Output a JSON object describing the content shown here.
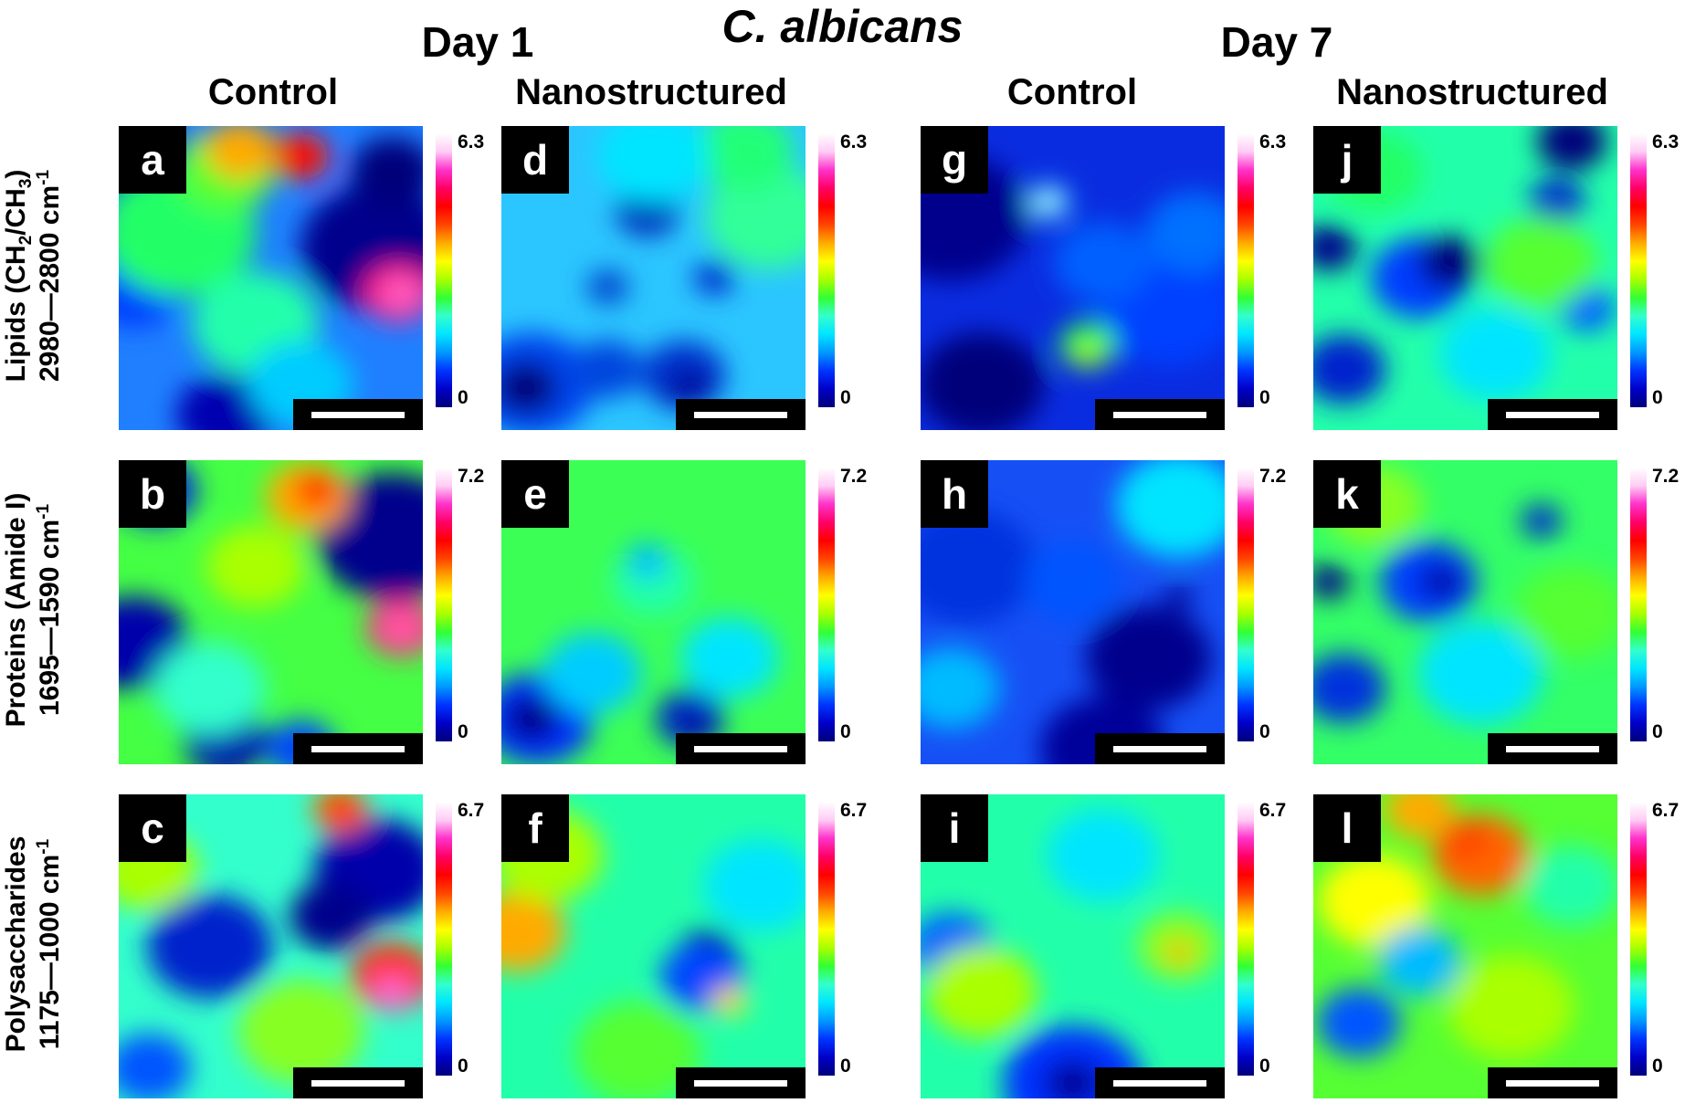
{
  "figure": {
    "title": "C. albicans",
    "days": [
      {
        "label": "Day 1",
        "columns": [
          "Control",
          "Nanostructured"
        ]
      },
      {
        "label": "Day 7",
        "columns": [
          "Control",
          "Nanostructured"
        ]
      }
    ],
    "rows": [
      {
        "line1_pre": "Lipids (CH",
        "line1_sub1": "2",
        "line1_mid": "/CH",
        "line1_sub2": "3",
        "line1_post": ")",
        "line2": "2980—2800 cm",
        "line2_sup": "-1",
        "colorbar_max": "6.3",
        "colorbar_min": "0"
      },
      {
        "line1_pre": "Proteins (Amide I)",
        "line1_sub1": "",
        "line1_mid": "",
        "line1_sub2": "",
        "line1_post": "",
        "line2": "1695—1590 cm",
        "line2_sup": "-1",
        "colorbar_max": "7.2",
        "colorbar_min": "0"
      },
      {
        "line1_pre": "Polysaccharides",
        "line1_sub1": "",
        "line1_mid": "",
        "line1_sub2": "",
        "line1_post": "",
        "line2": "1175—1000 cm",
        "line2_sup": "-1",
        "colorbar_max": "6.7",
        "colorbar_min": "0"
      }
    ],
    "panel_letters": [
      [
        "a",
        "d",
        "g",
        "j"
      ],
      [
        "b",
        "e",
        "h",
        "k"
      ],
      [
        "c",
        "f",
        "i",
        "l"
      ]
    ],
    "colormap": [
      "#00007a",
      "#0000c8",
      "#0033ff",
      "#0099ff",
      "#00e5ff",
      "#33ffcc",
      "#33ff33",
      "#aaff00",
      "#ffff00",
      "#ffaa00",
      "#ff4400",
      "#ff0000",
      "#ff0066",
      "#ff33cc",
      "#ffccf5",
      "#ffffff"
    ],
    "panels": [
      [
        {
          "base": "#1f7fff",
          "blobs": [
            [
              "#0000aa",
              0.08,
              0.12,
              0.16
            ],
            [
              "#003cff",
              0.05,
              0.55,
              0.12
            ],
            [
              "#00008c",
              0.85,
              0.4,
              0.22
            ],
            [
              "#00007a",
              0.9,
              0.15,
              0.12
            ],
            [
              "#0000b0",
              0.35,
              0.95,
              0.14
            ],
            [
              "#22ff66",
              0.2,
              0.35,
              0.22
            ],
            [
              "#55ff33",
              0.35,
              0.15,
              0.14
            ],
            [
              "#22ffaa",
              0.45,
              0.65,
              0.18
            ],
            [
              "#00ccff",
              0.6,
              0.85,
              0.15
            ],
            [
              "#ffaa00",
              0.4,
              0.08,
              0.1
            ],
            [
              "#ff1100",
              0.6,
              0.1,
              0.08
            ],
            [
              "#ff1e8c",
              0.92,
              0.55,
              0.1
            ],
            [
              "#ff66cc",
              0.93,
              0.55,
              0.05
            ]
          ]
        },
        {
          "base": "#2bc6ff",
          "blobs": [
            [
              "#0044ee",
              0.1,
              0.85,
              0.18
            ],
            [
              "#00007a",
              0.08,
              0.86,
              0.09
            ],
            [
              "#0033cc",
              0.6,
              0.82,
              0.12
            ],
            [
              "#00009a",
              0.62,
              0.86,
              0.06
            ],
            [
              "#0044dd",
              0.35,
              0.8,
              0.1
            ],
            [
              "#0033bb",
              0.48,
              0.28,
              0.09
            ],
            [
              "#0044cc",
              0.35,
              0.53,
              0.06
            ],
            [
              "#0033cc",
              0.7,
              0.5,
              0.06
            ],
            [
              "#33ff99",
              0.88,
              0.3,
              0.18
            ],
            [
              "#22ff77",
              0.8,
              0.08,
              0.14
            ],
            [
              "#00e5ff",
              0.5,
              0.1,
              0.16
            ]
          ]
        },
        {
          "base": "#0a2ce0",
          "blobs": [
            [
              "#00008c",
              0.1,
              0.3,
              0.22
            ],
            [
              "#00007a",
              0.2,
              0.85,
              0.18
            ],
            [
              "#0040ff",
              0.82,
              0.6,
              0.2
            ],
            [
              "#0070ff",
              0.9,
              0.35,
              0.14
            ],
            [
              "#00e5ff",
              0.42,
              0.25,
              0.06
            ],
            [
              "#ffffff",
              0.42,
              0.25,
              0.025
            ],
            [
              "#22ff55",
              0.55,
              0.72,
              0.08
            ],
            [
              "#aaff00",
              0.55,
              0.75,
              0.04
            ],
            [
              "#0060ff",
              0.6,
              0.45,
              0.14
            ]
          ]
        },
        {
          "base": "#22ffaa",
          "blobs": [
            [
              "#003cff",
              0.35,
              0.5,
              0.14
            ],
            [
              "#00007a",
              0.45,
              0.45,
              0.09
            ],
            [
              "#0022cc",
              0.1,
              0.8,
              0.12
            ],
            [
              "#00008c",
              0.05,
              0.4,
              0.08
            ],
            [
              "#0022cc",
              0.8,
              0.25,
              0.08
            ],
            [
              "#00007a",
              0.85,
              0.05,
              0.1
            ],
            [
              "#0060ff",
              0.9,
              0.6,
              0.08
            ],
            [
              "#00e5ff",
              0.6,
              0.75,
              0.16
            ],
            [
              "#55ff33",
              0.75,
              0.45,
              0.16
            ],
            [
              "#22ff66",
              0.2,
              0.15,
              0.14
            ]
          ]
        }
      ],
      [
        {
          "base": "#44ff44",
          "blobs": [
            [
              "#00008c",
              0.9,
              0.25,
              0.22
            ],
            [
              "#0000aa",
              0.05,
              0.6,
              0.16
            ],
            [
              "#0022dd",
              0.12,
              0.1,
              0.12
            ],
            [
              "#0000b0",
              0.35,
              0.92,
              0.12
            ],
            [
              "#0044ff",
              0.6,
              0.95,
              0.1
            ],
            [
              "#aaff00",
              0.45,
              0.35,
              0.14
            ],
            [
              "#ffaa00",
              0.62,
              0.12,
              0.12
            ],
            [
              "#ff1100",
              0.65,
              0.1,
              0.06
            ],
            [
              "#ff1e8c",
              0.93,
              0.55,
              0.1
            ],
            [
              "#ff66aa",
              0.93,
              0.55,
              0.05
            ],
            [
              "#33ffcc",
              0.3,
              0.75,
              0.16
            ]
          ]
        },
        {
          "base": "#3cff55",
          "blobs": [
            [
              "#0033ff",
              0.12,
              0.85,
              0.16
            ],
            [
              "#00008c",
              0.1,
              0.85,
              0.08
            ],
            [
              "#0033cc",
              0.62,
              0.85,
              0.1
            ],
            [
              "#00009a",
              0.63,
              0.87,
              0.05
            ],
            [
              "#00ccff",
              0.3,
              0.7,
              0.14
            ],
            [
              "#00e5ff",
              0.75,
              0.65,
              0.14
            ],
            [
              "#22ffaa",
              0.5,
              0.4,
              0.12
            ],
            [
              "#00bbff",
              0.48,
              0.33,
              0.06
            ]
          ]
        },
        {
          "base": "#1650f5",
          "blobs": [
            [
              "#0033dd",
              0.15,
              0.35,
              0.2
            ],
            [
              "#00008c",
              0.75,
              0.65,
              0.18
            ],
            [
              "#00009a",
              0.6,
              0.95,
              0.18
            ],
            [
              "#00e5ff",
              0.85,
              0.15,
              0.18
            ],
            [
              "#00bbff",
              0.1,
              0.75,
              0.14
            ],
            [
              "#0055ff",
              0.5,
              0.4,
              0.14
            ],
            [
              "#00008c",
              0.85,
              0.45,
              0.04
            ]
          ]
        },
        {
          "base": "#33ff66",
          "blobs": [
            [
              "#003cff",
              0.38,
              0.4,
              0.14
            ],
            [
              "#0000a0",
              0.42,
              0.4,
              0.06
            ],
            [
              "#0033dd",
              0.1,
              0.75,
              0.12
            ],
            [
              "#00008c",
              0.05,
              0.4,
              0.06
            ],
            [
              "#0033cc",
              0.75,
              0.2,
              0.06
            ],
            [
              "#00e5ff",
              0.55,
              0.7,
              0.18
            ],
            [
              "#88ff22",
              0.2,
              0.15,
              0.14
            ],
            [
              "#55ff33",
              0.85,
              0.5,
              0.16
            ]
          ]
        }
      ],
      [
        {
          "base": "#33ffcc",
          "blobs": [
            [
              "#0022cc",
              0.3,
              0.5,
              0.18
            ],
            [
              "#0000aa",
              0.85,
              0.25,
              0.18
            ],
            [
              "#00008c",
              0.7,
              0.4,
              0.12
            ],
            [
              "#aaff00",
              0.1,
              0.25,
              0.14
            ],
            [
              "#88ff22",
              0.6,
              0.78,
              0.18
            ],
            [
              "#ff6600",
              0.73,
              0.05,
              0.08
            ],
            [
              "#ff0000",
              0.73,
              0.05,
              0.04
            ],
            [
              "#ff3300",
              0.9,
              0.6,
              0.12
            ],
            [
              "#ff66cc",
              0.9,
              0.65,
              0.06
            ],
            [
              "#0055ff",
              0.1,
              0.9,
              0.12
            ]
          ]
        },
        {
          "base": "#22ffaa",
          "blobs": [
            [
              "#ffaa00",
              0.05,
              0.45,
              0.14
            ],
            [
              "#aaff00",
              0.15,
              0.2,
              0.16
            ],
            [
              "#00008c",
              0.68,
              0.52,
              0.08
            ],
            [
              "#0044ff",
              0.66,
              0.6,
              0.12
            ],
            [
              "#ffff00",
              0.75,
              0.68,
              0.05
            ],
            [
              "#ff4400",
              0.75,
              0.68,
              0.025
            ],
            [
              "#55ff33",
              0.45,
              0.85,
              0.18
            ],
            [
              "#00e5ff",
              0.85,
              0.3,
              0.16
            ]
          ]
        },
        {
          "base": "#22ffaa",
          "blobs": [
            [
              "#0033ff",
              0.5,
              0.95,
              0.2
            ],
            [
              "#00009a",
              0.5,
              0.95,
              0.08
            ],
            [
              "#0066ff",
              0.1,
              0.5,
              0.12
            ],
            [
              "#aaff00",
              0.2,
              0.65,
              0.16
            ],
            [
              "#88ff22",
              0.85,
              0.5,
              0.12
            ],
            [
              "#ffaa00",
              0.85,
              0.52,
              0.04
            ],
            [
              "#00e5ff",
              0.6,
              0.2,
              0.16
            ]
          ]
        },
        {
          "base": "#55ff33",
          "blobs": [
            [
              "#ff6600",
              0.55,
              0.2,
              0.14
            ],
            [
              "#ff4400",
              0.5,
              0.15,
              0.07
            ],
            [
              "#ffff00",
              0.2,
              0.35,
              0.16
            ],
            [
              "#aaff00",
              0.65,
              0.7,
              0.18
            ],
            [
              "#00bbff",
              0.35,
              0.55,
              0.12
            ],
            [
              "#0055ff",
              0.15,
              0.75,
              0.12
            ],
            [
              "#22ffaa",
              0.85,
              0.3,
              0.14
            ],
            [
              "#ffaa00",
              0.35,
              0.05,
              0.1
            ]
          ]
        }
      ]
    ]
  }
}
